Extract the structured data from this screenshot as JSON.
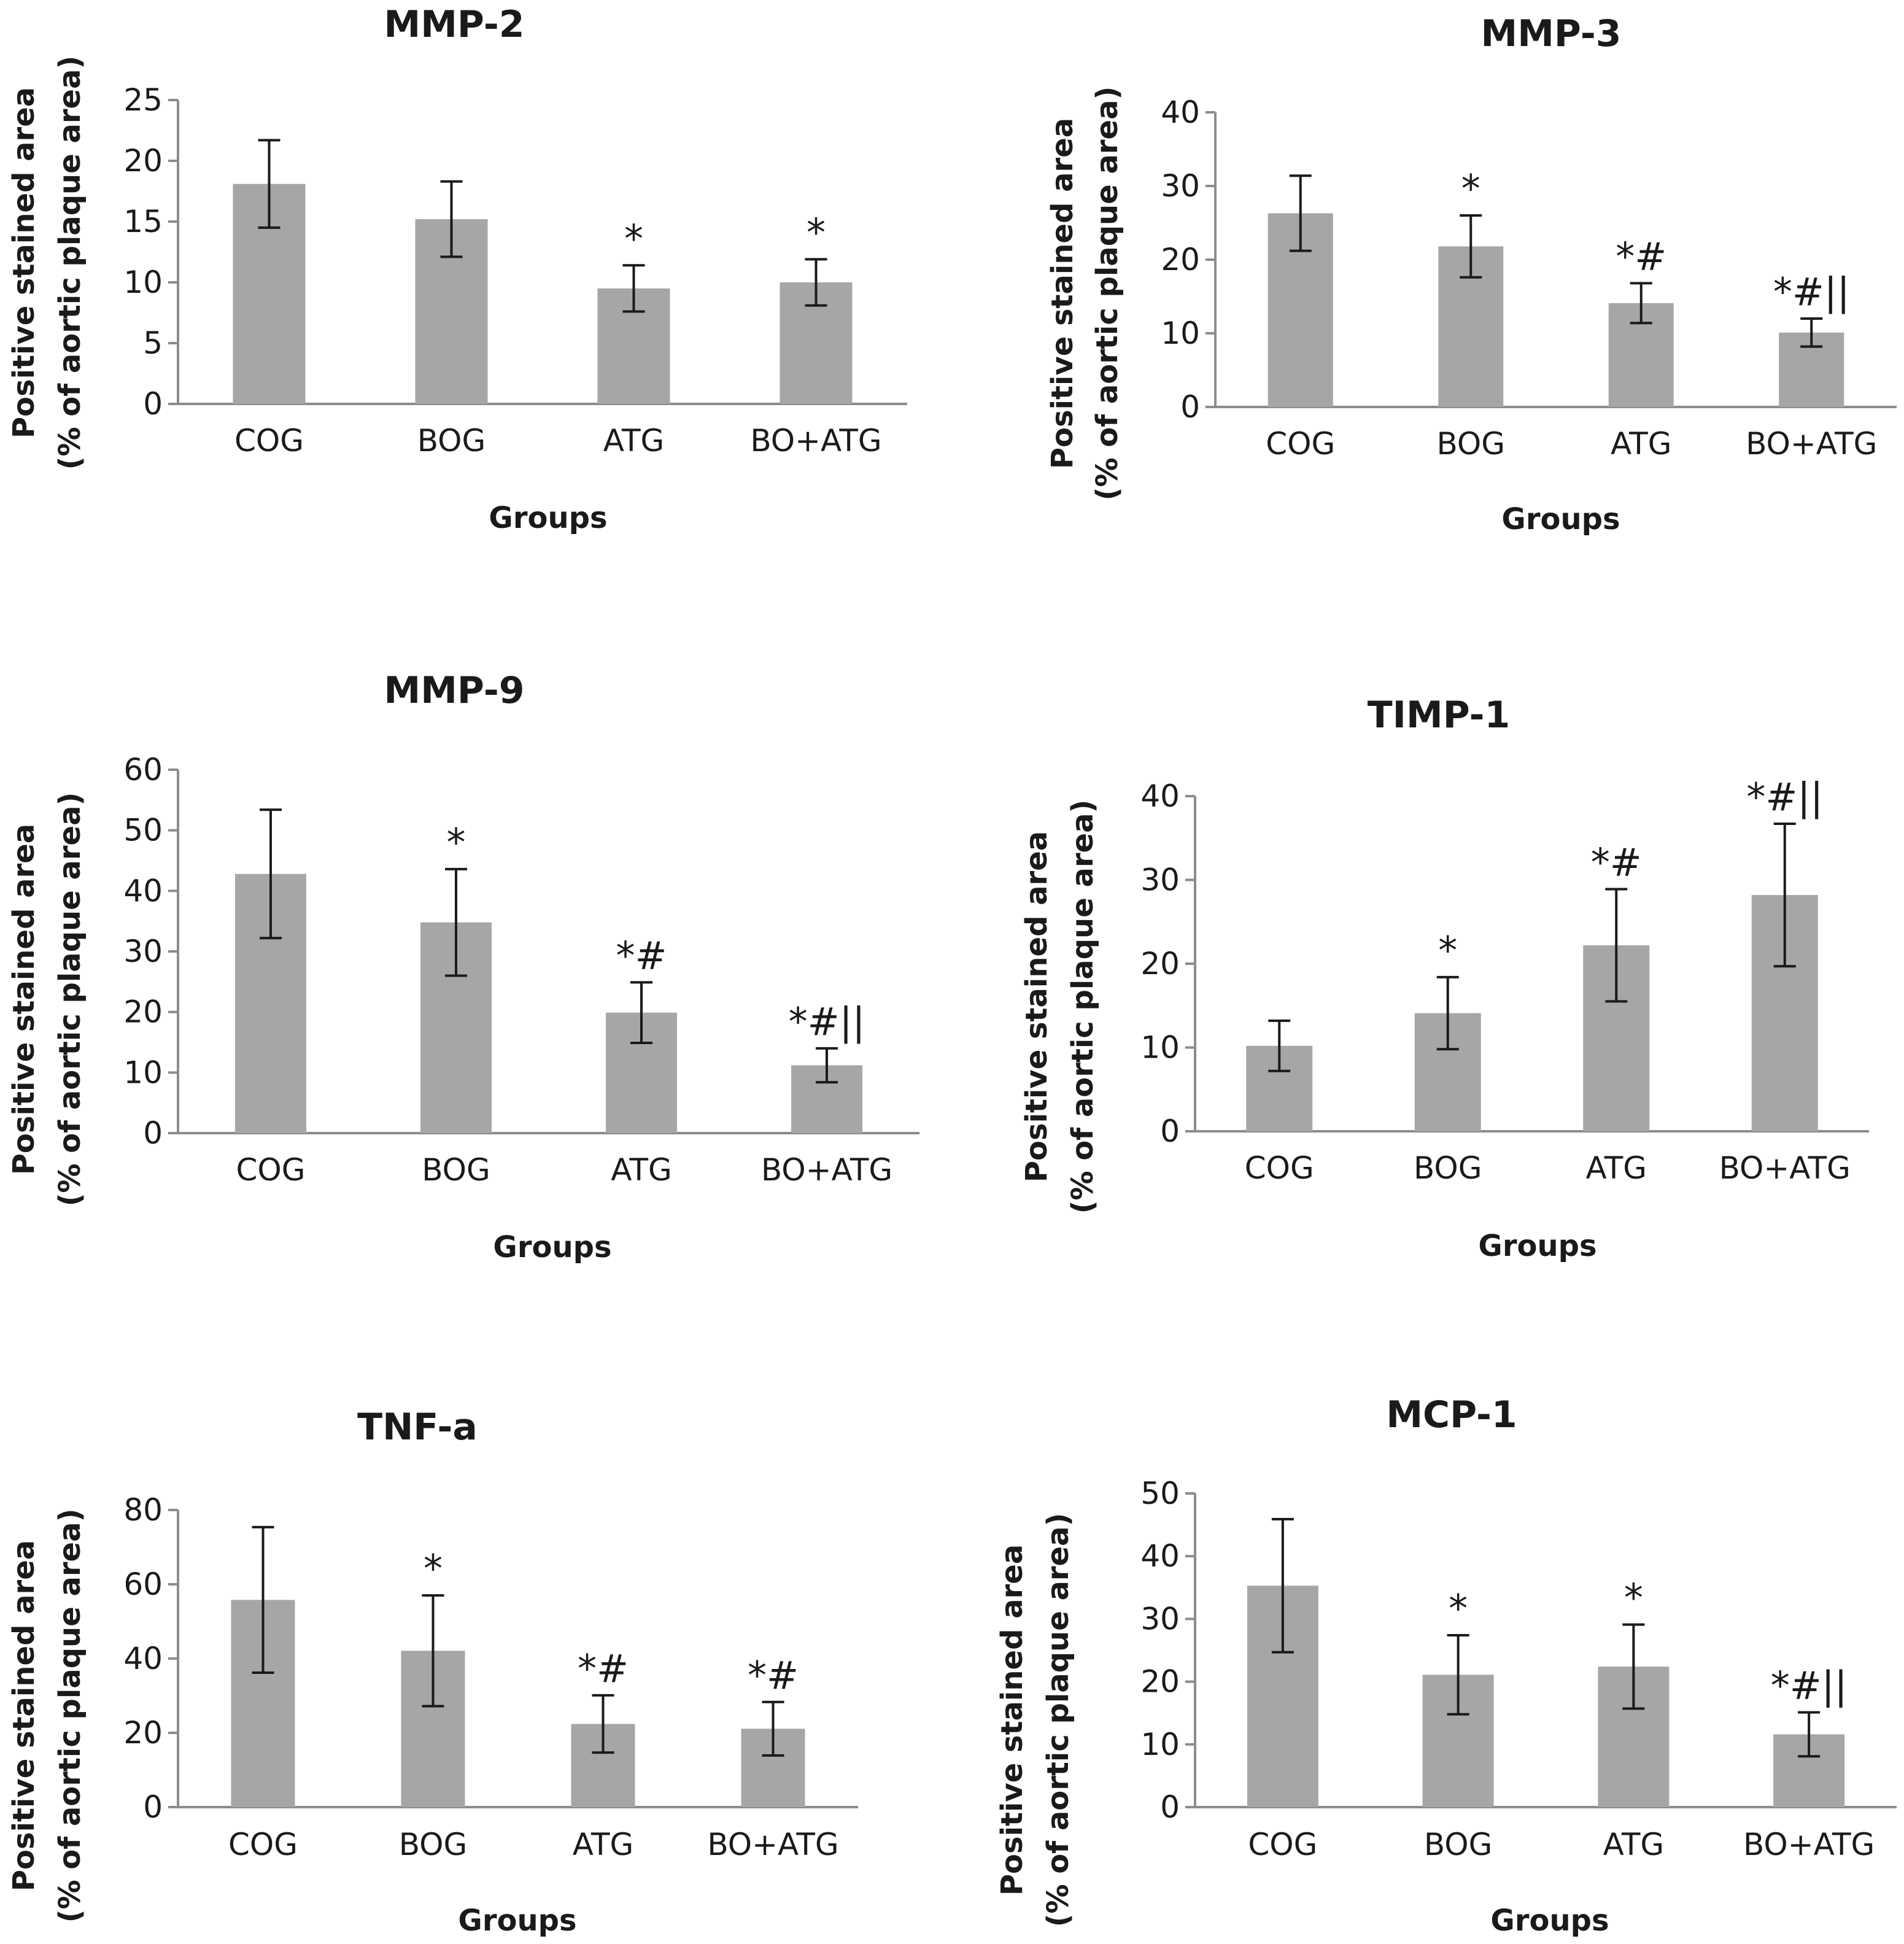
{
  "chart_data": [
    {
      "type": "bar",
      "title": "MMP-2",
      "xlabel": "Groups",
      "ylabel": [
        "Positive stained area",
        "(% of aortic plaque area)"
      ],
      "categories": [
        "COG",
        "BOG",
        "ATG",
        "BO+ATG"
      ],
      "values": [
        18.1,
        15.2,
        9.5,
        10.0
      ],
      "errors": [
        3.6,
        3.1,
        1.9,
        1.9
      ],
      "annotations": [
        "",
        "",
        "*",
        "*"
      ],
      "ylim": [
        0,
        25
      ],
      "yticks": [
        0,
        5,
        10,
        15,
        20,
        25
      ],
      "grid": false
    },
    {
      "type": "bar",
      "title": "MMP-3",
      "xlabel": "Groups",
      "ylabel": [
        "Positive stained area",
        "(% of aortic plaque area)"
      ],
      "categories": [
        "COG",
        "BOG",
        "ATG",
        "BO+ATG"
      ],
      "values": [
        26.3,
        21.8,
        14.1,
        10.1
      ],
      "errors": [
        5.1,
        4.2,
        2.7,
        1.9
      ],
      "annotations": [
        "",
        "*",
        "*#",
        "*#||"
      ],
      "ylim": [
        0,
        40
      ],
      "yticks": [
        0,
        10,
        20,
        30,
        40
      ],
      "grid": false
    },
    {
      "type": "bar",
      "title": "MMP-9",
      "xlabel": "Groups",
      "ylabel": [
        "Positive stained area",
        "(% of aortic plaque area)"
      ],
      "categories": [
        "COG",
        "BOG",
        "ATG",
        "BO+ATG"
      ],
      "values": [
        42.8,
        34.8,
        19.9,
        11.2
      ],
      "errors": [
        10.6,
        8.8,
        5.0,
        2.8
      ],
      "annotations": [
        "",
        "*",
        "*#",
        "*#||"
      ],
      "ylim": [
        0,
        60
      ],
      "yticks": [
        0,
        10,
        20,
        30,
        40,
        50,
        60
      ],
      "grid": false
    },
    {
      "type": "bar",
      "title": "TIMP-1",
      "xlabel": "Groups",
      "ylabel": [
        "Positive stained area",
        "(% of aortic plaque area)"
      ],
      "categories": [
        "COG",
        "BOG",
        "ATG",
        "BO+ATG"
      ],
      "values": [
        10.2,
        14.1,
        22.2,
        28.2
      ],
      "errors": [
        3.0,
        4.3,
        6.7,
        8.5
      ],
      "annotations": [
        "",
        "*",
        "*#",
        "*#||"
      ],
      "ylim": [
        0,
        40
      ],
      "yticks": [
        0,
        10,
        20,
        30,
        40
      ],
      "grid": false
    },
    {
      "type": "bar",
      "title": "TNF-a",
      "xlabel": "Groups",
      "ylabel": [
        "Positive stained area",
        "(% of aortic plaque area)"
      ],
      "categories": [
        "COG",
        "BOG",
        "ATG",
        "BO+ATG"
      ],
      "values": [
        55.8,
        42.1,
        22.4,
        21.1
      ],
      "errors": [
        19.6,
        14.9,
        7.7,
        7.2
      ],
      "annotations": [
        "",
        "*",
        "*#",
        "*#"
      ],
      "ylim": [
        0,
        80
      ],
      "yticks": [
        0,
        20,
        40,
        60,
        80
      ],
      "grid": false
    },
    {
      "type": "bar",
      "title": "MCP-1",
      "xlabel": "Groups",
      "ylabel": [
        "Positive stained area",
        "(% of aortic plaque area)"
      ],
      "categories": [
        "COG",
        "BOG",
        "ATG",
        "BO+ATG"
      ],
      "values": [
        35.3,
        21.1,
        22.4,
        11.6
      ],
      "errors": [
        10.6,
        6.3,
        6.7,
        3.5
      ],
      "annotations": [
        "",
        "*",
        "*",
        "*#||"
      ],
      "ylim": [
        0,
        50
      ],
      "yticks": [
        0,
        10,
        20,
        30,
        40,
        50
      ],
      "grid": false
    }
  ]
}
